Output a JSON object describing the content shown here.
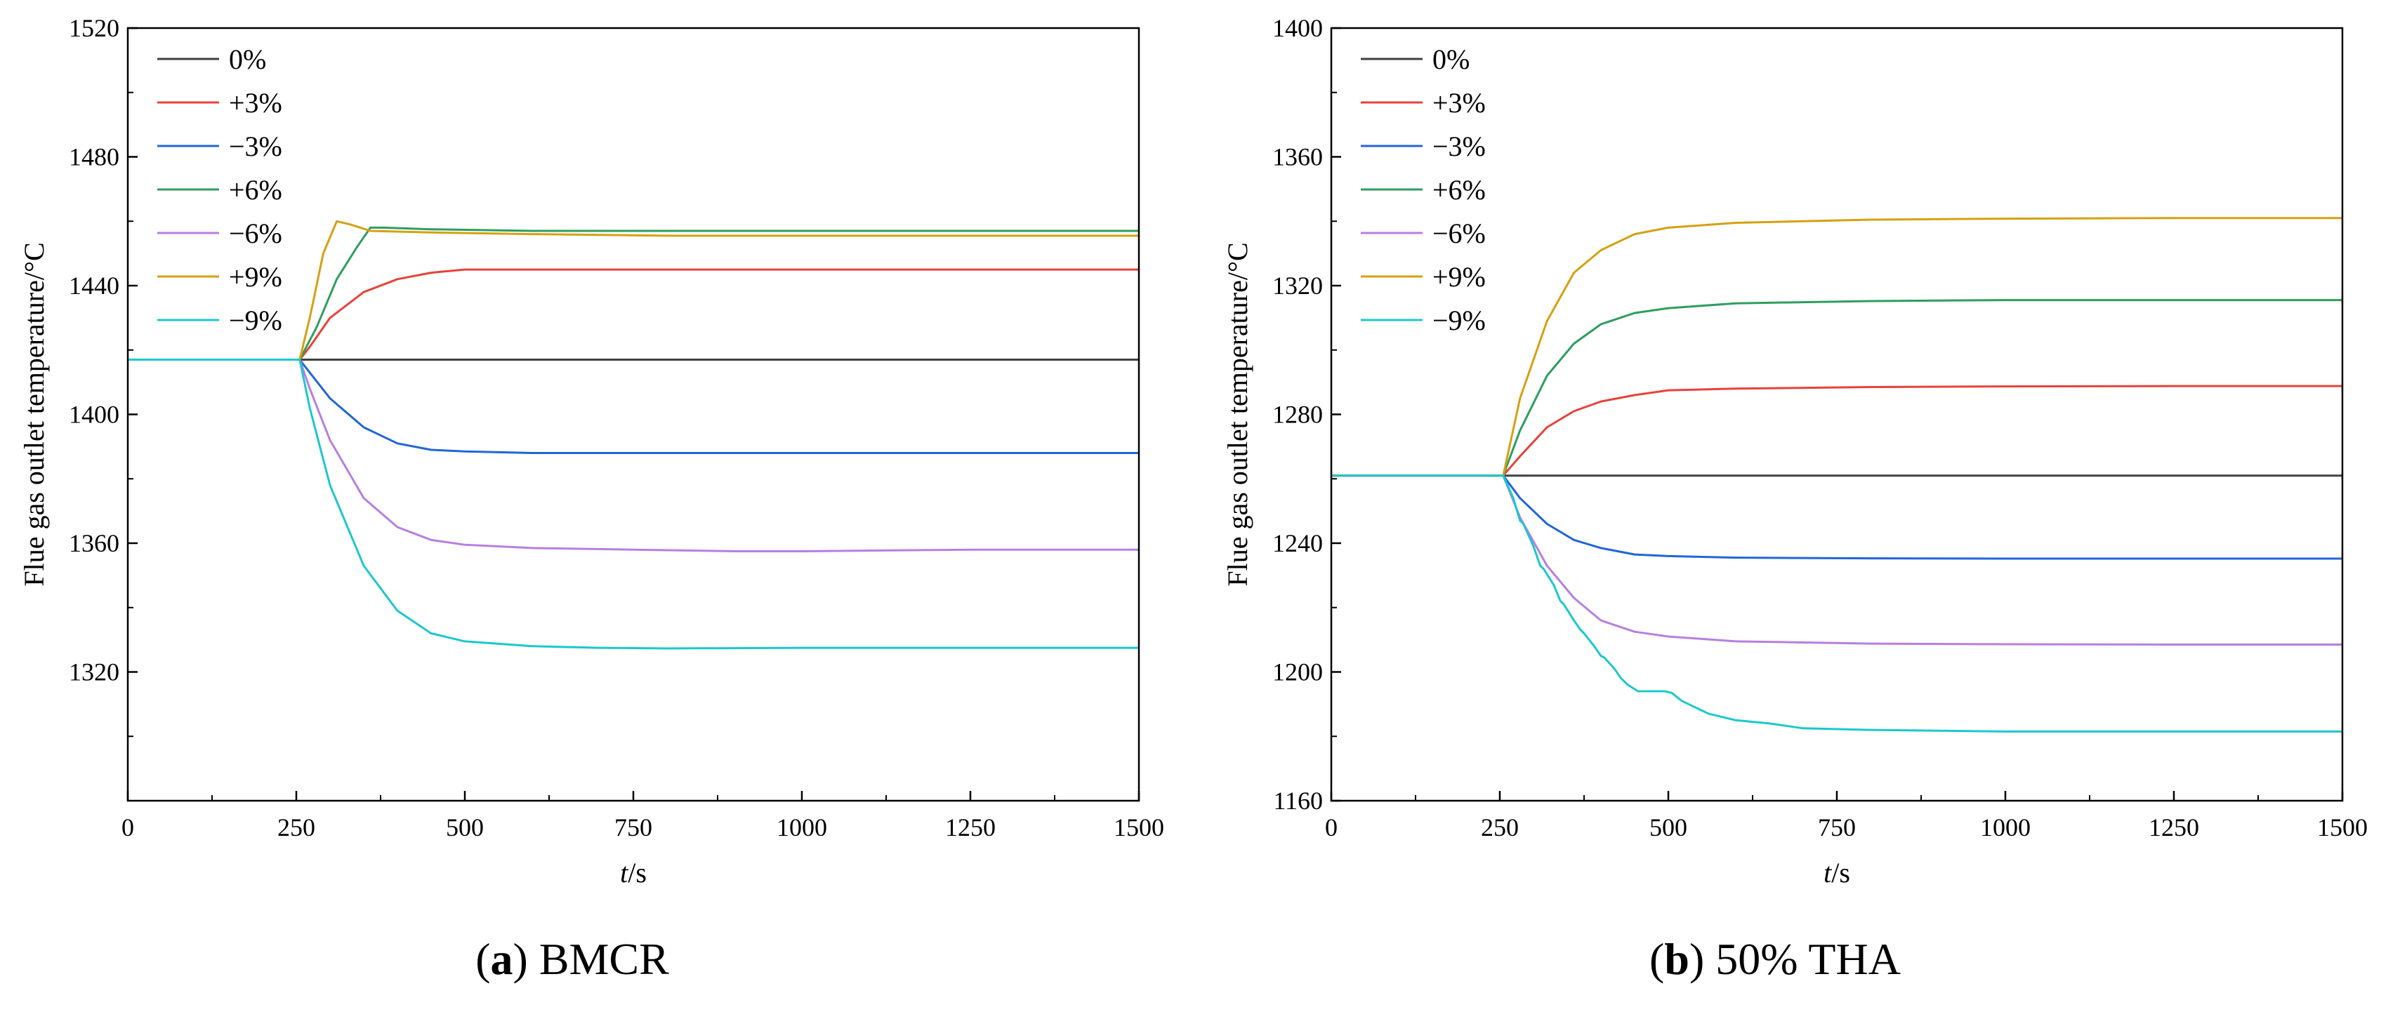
{
  "chart_data": [
    {
      "type": "line",
      "panel_letter": "a",
      "title": "BMCR",
      "xlabel_italic": "t",
      "xlabel_rest": "/s",
      "ylabel": "Flue gas outlet temperature/°C",
      "xlim": [
        0,
        1500
      ],
      "ylim": [
        1280,
        1520
      ],
      "xticks": [
        0,
        250,
        500,
        750,
        1000,
        1250,
        1500
      ],
      "yticks": [
        1320,
        1360,
        1400,
        1440,
        1480,
        1520
      ],
      "grid": false,
      "legend_position": "top-left",
      "series": [
        {
          "name": "0%",
          "color": "#404040",
          "x": [
            0,
            1500
          ],
          "y": [
            1417,
            1417
          ]
        },
        {
          "name": "+3%",
          "color": "#e8423a",
          "x": [
            0,
            255,
            270,
            300,
            350,
            400,
            450,
            500,
            600,
            800,
            1000,
            1250,
            1500
          ],
          "y": [
            1417,
            1417,
            1421,
            1430,
            1438,
            1442,
            1444,
            1445,
            1445,
            1445,
            1445,
            1445,
            1445
          ]
        },
        {
          "name": "−3%",
          "color": "#2166d8",
          "x": [
            0,
            255,
            270,
            300,
            350,
            400,
            450,
            500,
            600,
            800,
            1000,
            1250,
            1500
          ],
          "y": [
            1417,
            1417,
            1413,
            1405,
            1396,
            1391,
            1389,
            1388.5,
            1388,
            1388,
            1388,
            1388,
            1388
          ]
        },
        {
          "name": "+6%",
          "color": "#2e9e5e",
          "x": [
            0,
            255,
            280,
            310,
            340,
            360,
            380,
            450,
            600,
            800,
            1000,
            1250,
            1500
          ],
          "y": [
            1417,
            1417,
            1427,
            1442,
            1452,
            1458,
            1458,
            1457.5,
            1457,
            1457,
            1457,
            1457,
            1457
          ]
        },
        {
          "name": "−6%",
          "color": "#b77fe0",
          "x": [
            0,
            255,
            270,
            300,
            350,
            400,
            450,
            500,
            600,
            750,
            900,
            1000,
            1250,
            1500
          ],
          "y": [
            1417,
            1417,
            1408,
            1392,
            1374,
            1365,
            1361,
            1359.5,
            1358.5,
            1358,
            1357.5,
            1357.5,
            1358,
            1358
          ]
        },
        {
          "name": "+9%",
          "color": "#d6a011",
          "x": [
            0,
            255,
            270,
            290,
            310,
            330,
            360,
            450,
            600,
            800,
            1000,
            1250,
            1500
          ],
          "y": [
            1417,
            1417,
            1430,
            1450,
            1460,
            1459,
            1457,
            1456.5,
            1456,
            1455.5,
            1455.5,
            1455.5,
            1455.5
          ]
        },
        {
          "name": "−9%",
          "color": "#1cc8cc",
          "x": [
            0,
            255,
            270,
            300,
            350,
            400,
            450,
            500,
            600,
            700,
            800,
            1000,
            1250,
            1500
          ],
          "y": [
            1417,
            1417,
            1402,
            1378,
            1353,
            1339,
            1332,
            1329.5,
            1328,
            1327.5,
            1327.3,
            1327.5,
            1327.5,
            1327.5
          ]
        }
      ]
    },
    {
      "type": "line",
      "panel_letter": "b",
      "title": "50% THA",
      "xlabel_italic": "t",
      "xlabel_rest": "/s",
      "ylabel": "Flue gas outlet temperature/°C",
      "xlim": [
        0,
        1500
      ],
      "ylim": [
        1160,
        1400
      ],
      "xticks": [
        0,
        250,
        500,
        750,
        1000,
        1250,
        1500
      ],
      "yticks": [
        1160,
        1200,
        1240,
        1280,
        1320,
        1360,
        1400
      ],
      "grid": false,
      "legend_position": "top-left",
      "series": [
        {
          "name": "0%",
          "color": "#404040",
          "x": [
            0,
            1500
          ],
          "y": [
            1261,
            1261
          ]
        },
        {
          "name": "+3%",
          "color": "#e8423a",
          "x": [
            0,
            255,
            280,
            320,
            360,
            400,
            450,
            500,
            600,
            800,
            1000,
            1250,
            1500
          ],
          "y": [
            1261,
            1261,
            1267,
            1276,
            1281,
            1284,
            1286,
            1287.5,
            1288,
            1288.5,
            1288.7,
            1288.8,
            1288.8
          ]
        },
        {
          "name": "−3%",
          "color": "#2166d8",
          "x": [
            0,
            255,
            280,
            320,
            360,
            400,
            450,
            500,
            600,
            800,
            1000,
            1250,
            1500
          ],
          "y": [
            1261,
            1261,
            1254,
            1246,
            1241,
            1238.5,
            1236.5,
            1236,
            1235.5,
            1235.3,
            1235.2,
            1235.2,
            1235.2
          ]
        },
        {
          "name": "+6%",
          "color": "#2e9e5e",
          "x": [
            0,
            255,
            280,
            320,
            360,
            400,
            450,
            500,
            600,
            800,
            1000,
            1250,
            1500
          ],
          "y": [
            1261,
            1261,
            1275,
            1292,
            1302,
            1308,
            1311.5,
            1313,
            1314.5,
            1315.2,
            1315.5,
            1315.5,
            1315.5
          ]
        },
        {
          "name": "−6%",
          "color": "#b77fe0",
          "x": [
            0,
            255,
            280,
            320,
            360,
            400,
            450,
            500,
            600,
            800,
            1000,
            1250,
            1500
          ],
          "y": [
            1261,
            1261,
            1248,
            1233,
            1223,
            1216,
            1212.5,
            1211,
            1209.5,
            1208.8,
            1208.6,
            1208.5,
            1208.5
          ]
        },
        {
          "name": "+9%",
          "color": "#d6a011",
          "x": [
            0,
            255,
            280,
            320,
            360,
            400,
            450,
            500,
            600,
            800,
            1000,
            1250,
            1500
          ],
          "y": [
            1261,
            1261,
            1285,
            1309,
            1324,
            1331,
            1336,
            1338,
            1339.5,
            1340.5,
            1340.8,
            1341,
            1341
          ]
        },
        {
          "name": "−9%",
          "color": "#1cc8cc",
          "x": [
            0,
            255,
            270,
            280,
            285,
            300,
            310,
            315,
            330,
            340,
            345,
            360,
            370,
            375,
            390,
            400,
            405,
            420,
            430,
            440,
            455,
            465,
            480,
            495,
            505,
            520,
            560,
            600,
            650,
            700,
            800,
            1000,
            1250,
            1500
          ],
          "y": [
            1261,
            1261,
            1254,
            1247,
            1246,
            1239,
            1233,
            1232,
            1227,
            1222,
            1221,
            1216,
            1213,
            1212,
            1208,
            1205,
            1204.5,
            1201,
            1198,
            1196,
            1194,
            1194,
            1194,
            1194,
            1193.5,
            1191,
            1187,
            1185,
            1184,
            1182.5,
            1182,
            1181.5,
            1181.5,
            1181.5
          ]
        }
      ]
    }
  ]
}
